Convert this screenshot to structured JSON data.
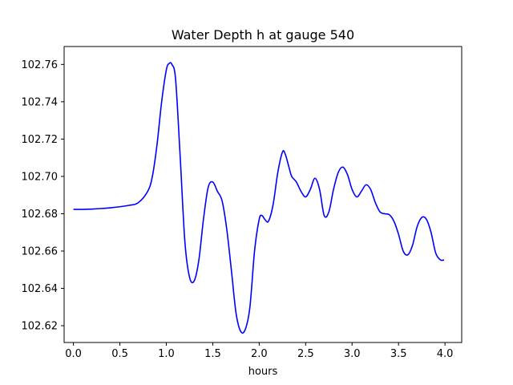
{
  "chart_data": {
    "type": "line",
    "title": "Water Depth h at gauge 540",
    "xlabel": "hours",
    "ylabel": "",
    "xlim": [
      -0.1,
      4.18
    ],
    "ylim": [
      102.611,
      102.7696
    ],
    "xticks": [
      0.0,
      0.5,
      1.0,
      1.5,
      2.0,
      2.5,
      3.0,
      3.5,
      4.0
    ],
    "xtick_labels": [
      "0.0",
      "0.5",
      "1.0",
      "1.5",
      "2.0",
      "2.5",
      "3.0",
      "3.5",
      "4.0"
    ],
    "yticks": [
      102.62,
      102.64,
      102.66,
      102.68,
      102.7,
      102.72,
      102.74,
      102.76
    ],
    "ytick_labels": [
      "102.62",
      "102.64",
      "102.66",
      "102.68",
      "102.70",
      "102.72",
      "102.74",
      "102.76"
    ],
    "grid": false,
    "series": [
      {
        "color": "#0000ff",
        "x": [
          0.0,
          0.2,
          0.4,
          0.6,
          0.7,
          0.8,
          0.85,
          0.9,
          0.95,
          1.0,
          1.03,
          1.06,
          1.1,
          1.15,
          1.2,
          1.25,
          1.3,
          1.35,
          1.4,
          1.45,
          1.5,
          1.55,
          1.6,
          1.65,
          1.7,
          1.75,
          1.8,
          1.85,
          1.9,
          1.95,
          2.0,
          2.03,
          2.06,
          2.1,
          2.15,
          2.2,
          2.25,
          2.28,
          2.32,
          2.35,
          2.4,
          2.45,
          2.5,
          2.55,
          2.6,
          2.65,
          2.7,
          2.75,
          2.8,
          2.85,
          2.9,
          2.95,
          3.0,
          3.05,
          3.1,
          3.15,
          3.2,
          3.25,
          3.3,
          3.35,
          3.4,
          3.45,
          3.5,
          3.55,
          3.6,
          3.65,
          3.7,
          3.75,
          3.8,
          3.85,
          3.9,
          3.95,
          3.99
        ],
        "y": [
          102.6823,
          102.6825,
          102.6832,
          102.6845,
          102.686,
          102.692,
          102.7,
          102.717,
          102.74,
          102.757,
          102.7605,
          102.76,
          102.752,
          102.71,
          102.665,
          102.646,
          102.644,
          102.655,
          102.677,
          102.694,
          102.697,
          102.692,
          102.687,
          102.672,
          102.65,
          102.627,
          102.617,
          102.618,
          102.63,
          102.66,
          102.677,
          102.679,
          102.677,
          102.676,
          102.685,
          102.702,
          102.713,
          102.712,
          102.705,
          102.7,
          102.697,
          102.692,
          102.689,
          102.693,
          102.699,
          102.693,
          102.679,
          102.681,
          102.693,
          102.702,
          102.705,
          102.701,
          102.693,
          102.689,
          102.692,
          102.6955,
          102.693,
          102.686,
          102.681,
          102.68,
          102.6795,
          102.676,
          102.669,
          102.66,
          102.658,
          102.663,
          102.673,
          102.678,
          102.677,
          102.67,
          102.659,
          102.6553,
          102.6552
        ]
      }
    ]
  }
}
